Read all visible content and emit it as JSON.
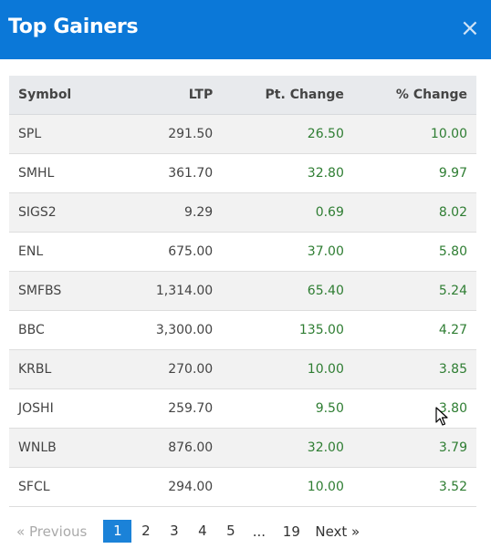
{
  "header": {
    "title": "Top Gainers",
    "close": "×"
  },
  "table": {
    "columns": [
      "Symbol",
      "LTP",
      "Pt. Change",
      "% Change"
    ],
    "rows": [
      {
        "symbol": "SPL",
        "ltp": "291.50",
        "pt": "26.50",
        "pct": "10.00"
      },
      {
        "symbol": "SMHL",
        "ltp": "361.70",
        "pt": "32.80",
        "pct": "9.97"
      },
      {
        "symbol": "SIGS2",
        "ltp": "9.29",
        "pt": "0.69",
        "pct": "8.02"
      },
      {
        "symbol": "ENL",
        "ltp": "675.00",
        "pt": "37.00",
        "pct": "5.80"
      },
      {
        "symbol": "SMFBS",
        "ltp": "1,314.00",
        "pt": "65.40",
        "pct": "5.24"
      },
      {
        "symbol": "BBC",
        "ltp": "3,300.00",
        "pt": "135.00",
        "pct": "4.27"
      },
      {
        "symbol": "KRBL",
        "ltp": "270.00",
        "pt": "10.00",
        "pct": "3.85"
      },
      {
        "symbol": "JOSHI",
        "ltp": "259.70",
        "pt": "9.50",
        "pct": "3.80"
      },
      {
        "symbol": "WNLB",
        "ltp": "876.00",
        "pt": "32.00",
        "pct": "3.79"
      },
      {
        "symbol": "SFCL",
        "ltp": "294.00",
        "pt": "10.00",
        "pct": "3.52"
      }
    ]
  },
  "pagination": {
    "previous": "« Previous",
    "pages": [
      "1",
      "2",
      "3",
      "4",
      "5"
    ],
    "ellipsis": "...",
    "last": "19",
    "next": "Next »",
    "current": "1"
  },
  "colors": {
    "header": "#0b78d8",
    "positive": "#2e7d32",
    "active_page": "#1b82d8"
  }
}
